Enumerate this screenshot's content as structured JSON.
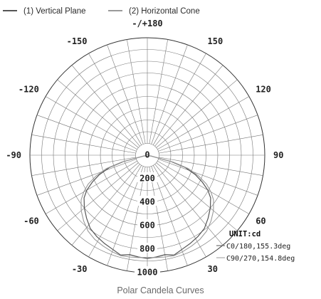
{
  "legend": {
    "items": [
      {
        "label": "(1) Vertical Plane",
        "color": "#555555"
      },
      {
        "label": "(2) Horizontal Cone",
        "color": "#9a9a9a"
      }
    ]
  },
  "caption": "Polar Candela Curves",
  "chart_data": {
    "type": "polar",
    "title": "Polar Candela Curves",
    "angle_labels": [
      {
        "angle": 180,
        "text": "-/+180"
      },
      {
        "angle": -150,
        "text": "-150"
      },
      {
        "angle": 150,
        "text": "150"
      },
      {
        "angle": -120,
        "text": "-120"
      },
      {
        "angle": 120,
        "text": "120"
      },
      {
        "angle": -90,
        "text": "-90"
      },
      {
        "angle": 90,
        "text": "90"
      },
      {
        "angle": -60,
        "text": "-60"
      },
      {
        "angle": 60,
        "text": "60"
      },
      {
        "angle": -30,
        "text": "-30"
      },
      {
        "angle": 30,
        "text": "30"
      },
      {
        "angle": 0,
        "text": "0"
      }
    ],
    "radial_ticks": [
      {
        "value": 0,
        "text": "0"
      },
      {
        "value": 200,
        "text": "200"
      },
      {
        "value": 400,
        "text": "400"
      },
      {
        "value": 600,
        "text": "600"
      },
      {
        "value": 800,
        "text": "800"
      },
      {
        "value": 1000,
        "text": "1000"
      }
    ],
    "radial_max": 1000,
    "rings": 10,
    "spoke_step_deg": 10,
    "unit": "UNIT:cd",
    "series": [
      {
        "name": "C0/180,155.3deg",
        "color": "#555555",
        "points": [
          [
            -78,
            30
          ],
          [
            -75,
            210
          ],
          [
            -72,
            340
          ],
          [
            -68,
            440
          ],
          [
            -64,
            520
          ],
          [
            -60,
            595
          ],
          [
            -56,
            650
          ],
          [
            -50,
            700
          ],
          [
            -44,
            745
          ],
          [
            -38,
            790
          ],
          [
            -32,
            815
          ],
          [
            -26,
            835
          ],
          [
            -20,
            855
          ],
          [
            -15,
            880
          ],
          [
            -10,
            860
          ],
          [
            -5,
            870
          ],
          [
            0,
            880
          ],
          [
            5,
            870
          ],
          [
            10,
            860
          ],
          [
            15,
            880
          ],
          [
            20,
            855
          ],
          [
            26,
            835
          ],
          [
            32,
            815
          ],
          [
            38,
            790
          ],
          [
            44,
            745
          ],
          [
            50,
            700
          ],
          [
            56,
            650
          ],
          [
            60,
            595
          ],
          [
            64,
            520
          ],
          [
            68,
            440
          ],
          [
            72,
            340
          ],
          [
            75,
            210
          ],
          [
            78,
            30
          ]
        ]
      },
      {
        "name": "C90/270,154.8deg",
        "color": "#9a9a9a",
        "points": [
          [
            -78,
            30
          ],
          [
            -75,
            230
          ],
          [
            -72,
            365
          ],
          [
            -68,
            470
          ],
          [
            -64,
            560
          ],
          [
            -60,
            625
          ],
          [
            -56,
            680
          ],
          [
            -50,
            735
          ],
          [
            -44,
            780
          ],
          [
            -38,
            820
          ],
          [
            -32,
            845
          ],
          [
            -26,
            860
          ],
          [
            -20,
            875
          ],
          [
            -15,
            885
          ],
          [
            -10,
            880
          ],
          [
            -5,
            875
          ],
          [
            0,
            870
          ],
          [
            5,
            875
          ],
          [
            10,
            880
          ],
          [
            15,
            885
          ],
          [
            20,
            875
          ],
          [
            26,
            860
          ],
          [
            32,
            845
          ],
          [
            38,
            820
          ],
          [
            44,
            780
          ],
          [
            50,
            735
          ],
          [
            56,
            680
          ],
          [
            60,
            625
          ],
          [
            64,
            560
          ],
          [
            68,
            470
          ],
          [
            72,
            365
          ],
          [
            75,
            230
          ],
          [
            78,
            30
          ]
        ]
      }
    ]
  }
}
